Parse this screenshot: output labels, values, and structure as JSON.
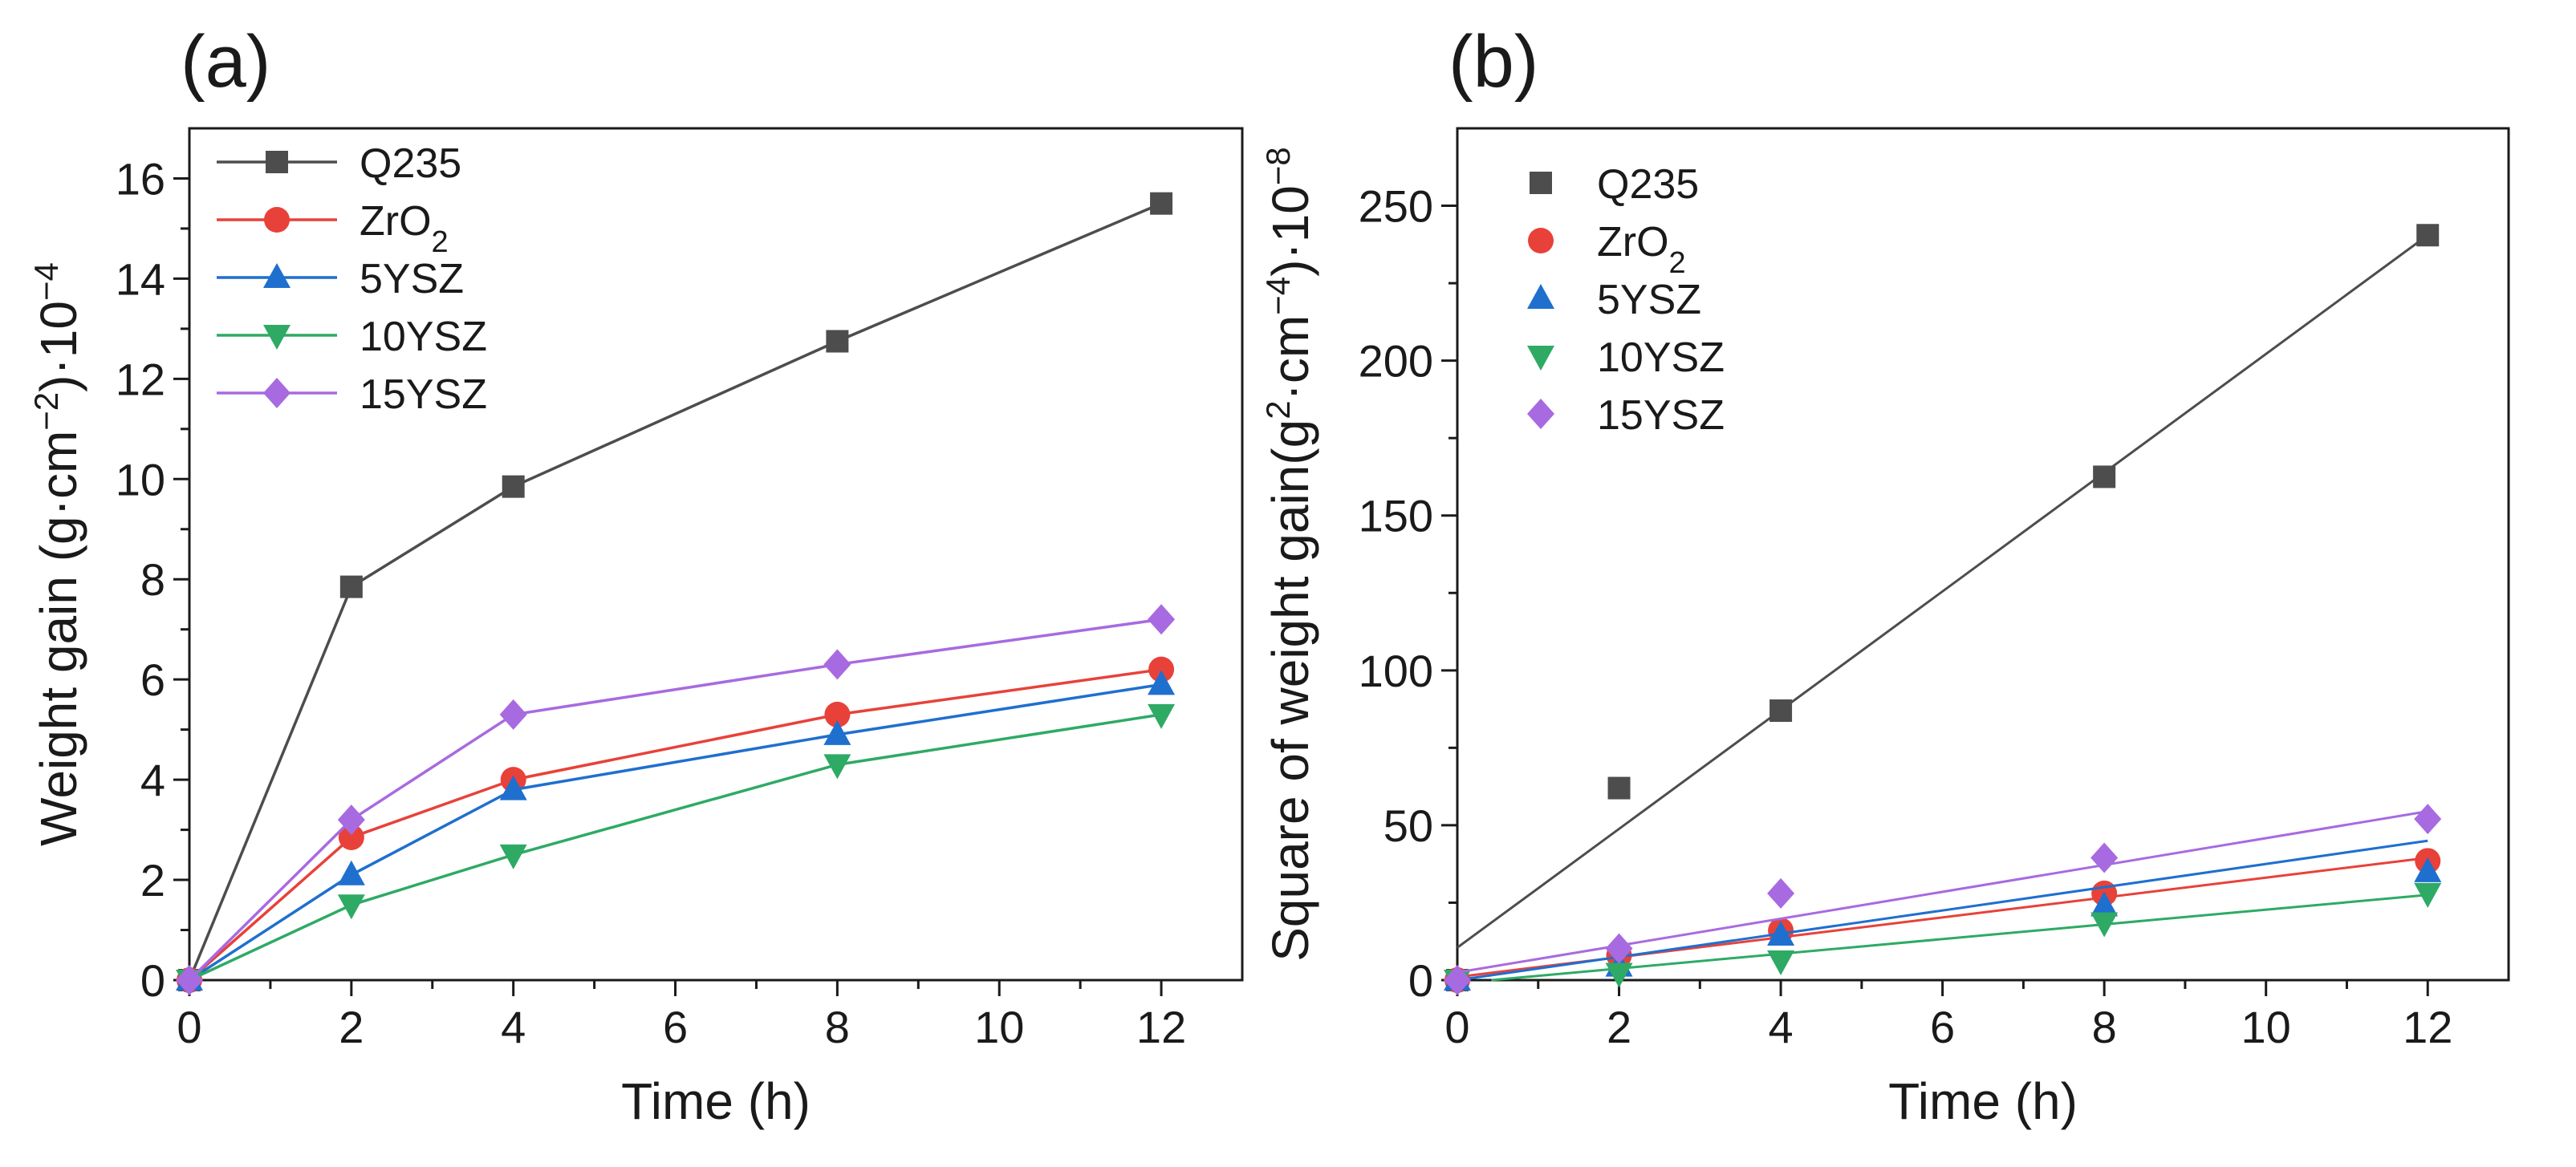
{
  "chart_data": [
    {
      "panel_label": "(a)",
      "type": "line",
      "x": [
        0,
        2,
        4,
        8,
        12
      ],
      "xlim": [
        0,
        13
      ],
      "ylim": [
        0,
        17
      ],
      "xticks": [
        "0",
        "2",
        "4",
        "6",
        "8",
        "10",
        "12"
      ],
      "yticks": [
        "0",
        "2",
        "4",
        "6",
        "8",
        "10",
        "12",
        "14",
        "16"
      ],
      "xlabel": "Time (h)",
      "ylabel": "Weight gain (g·cm",
      "ylabel_sup": "−2",
      "ylabel_after": ")·10",
      "ylabel_exp": "−4",
      "grid": false,
      "legend_position": "top-left",
      "series": [
        {
          "name": "Q235",
          "sub": "",
          "color": "#4d4d4d",
          "marker": "square",
          "values": [
            0,
            7.85,
            9.85,
            12.75,
            15.5
          ]
        },
        {
          "name": "ZrO",
          "sub": "2",
          "color": "#e8413a",
          "marker": "circle",
          "values": [
            0,
            2.85,
            4.0,
            5.3,
            6.2
          ]
        },
        {
          "name": "5YSZ",
          "sub": "",
          "color": "#1f6fcf",
          "marker": "triangle-up",
          "values": [
            0,
            2.1,
            3.8,
            4.9,
            5.9
          ]
        },
        {
          "name": "10YSZ",
          "sub": "",
          "color": "#2eaa65",
          "marker": "triangle-down",
          "values": [
            0,
            1.5,
            2.5,
            4.3,
            5.3
          ]
        },
        {
          "name": "15YSZ",
          "sub": "",
          "color": "#a86ae0",
          "marker": "diamond",
          "values": [
            0,
            3.2,
            5.3,
            6.3,
            7.2
          ]
        }
      ]
    },
    {
      "panel_label": "(b)",
      "type": "scatter",
      "x": [
        0,
        2,
        4,
        8,
        12
      ],
      "xlim": [
        0,
        13
      ],
      "ylim": [
        0,
        275
      ],
      "xticks": [
        "0",
        "2",
        "4",
        "6",
        "8",
        "10",
        "12"
      ],
      "yticks": [
        "0",
        "50",
        "100",
        "150",
        "200",
        "250"
      ],
      "xlabel": "Time (h)",
      "ylabel": "Square of weight gain(g",
      "ylabel_sup": "2",
      "ylabel_after": "·cm",
      "ylabel_sup2": "−4",
      "ylabel_after2": ")·10",
      "ylabel_exp": "−8",
      "grid": false,
      "legend_position": "top-left",
      "series": [
        {
          "name": "Q235",
          "sub": "",
          "color": "#4d4d4d",
          "marker": "square",
          "values": [
            0,
            62,
            87,
            162.5,
            240.5
          ],
          "fit": [
            10.5,
            240.5
          ]
        },
        {
          "name": "ZrO",
          "sub": "2",
          "color": "#e8413a",
          "marker": "circle",
          "values": [
            0,
            8,
            16,
            28,
            38.5
          ],
          "fit": [
            1,
            39.5
          ]
        },
        {
          "name": "5YSZ",
          "sub": "",
          "color": "#1f6fcf",
          "marker": "triangle-up",
          "values": [
            0,
            4.5,
            14.5,
            24,
            35
          ],
          "fit": [
            0,
            45
          ]
        },
        {
          "name": "10YSZ",
          "sub": "",
          "color": "#2eaa65",
          "marker": "triangle-down",
          "values": [
            0,
            2.2,
            6.2,
            18.5,
            28
          ],
          "fit": [
            -1,
            27.5
          ]
        },
        {
          "name": "15YSZ",
          "sub": "",
          "color": "#a86ae0",
          "marker": "diamond",
          "values": [
            0,
            10.2,
            28,
            39.5,
            52
          ],
          "fit": [
            2.5,
            54.5
          ]
        }
      ]
    }
  ]
}
